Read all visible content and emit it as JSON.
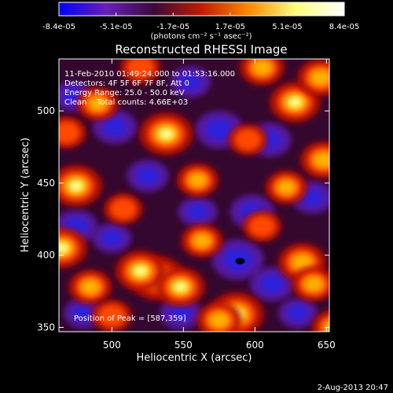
{
  "chart_data": {
    "type": "heatmap",
    "title": "Reconstructed RHESSI Image",
    "xlabel": "Heliocentric X (arcsec)",
    "ylabel": "Heliocentric Y (arcsec)",
    "xlim": [
      463,
      652
    ],
    "ylim": [
      347,
      536
    ],
    "x_ticks": [
      500,
      550,
      600,
      650
    ],
    "y_ticks": [
      350,
      400,
      450,
      500
    ],
    "x_tick_labels": [
      "500",
      "550",
      "600",
      "650"
    ],
    "y_tick_labels": [
      "350",
      "400",
      "450",
      "500"
    ],
    "colorbar": {
      "min": -8.4e-05,
      "max": 8.4e-05,
      "tick_labels": [
        "-8.4e-05",
        "-5.1e-05",
        "-1.7e-05",
        "1.7e-05",
        "5.1e-05",
        "8.4e-05"
      ],
      "unit_label": "(photons cm⁻² s⁻¹ asec⁻²)",
      "colors": [
        "#0000ff",
        "#6a1fb8",
        "#3a0a3a",
        "#c21a00",
        "#ff8a00",
        "#ffff80",
        "#ffffff"
      ]
    },
    "annotations": [
      "11-Feb-2010 01:49:24.000 to 01:53:16.000",
      "Detectors: 4F 5F 6F 7F 8F, Att 0",
      "Energy Range: 25.0 - 50.0 keV",
      "Clean    Total counts: 4.66E+03"
    ],
    "peak_label": "Position of Peak = [587,359]",
    "peak": [
      587,
      359
    ],
    "hot_sources": [
      {
        "x": 532,
        "y": 384,
        "v": 1.0
      },
      {
        "x": 520,
        "y": 389,
        "v": 0.85
      },
      {
        "x": 548,
        "y": 378,
        "v": 0.8
      },
      {
        "x": 587,
        "y": 359,
        "v": 1.0
      },
      {
        "x": 575,
        "y": 355,
        "v": 0.65
      },
      {
        "x": 538,
        "y": 484,
        "v": 0.95
      },
      {
        "x": 475,
        "y": 448,
        "v": 0.9
      },
      {
        "x": 465,
        "y": 405,
        "v": 0.85
      },
      {
        "x": 628,
        "y": 506,
        "v": 0.85
      },
      {
        "x": 646,
        "y": 523,
        "v": 0.7
      },
      {
        "x": 648,
        "y": 466,
        "v": 0.7
      },
      {
        "x": 633,
        "y": 395,
        "v": 0.75
      },
      {
        "x": 641,
        "y": 380,
        "v": 0.6
      },
      {
        "x": 605,
        "y": 530,
        "v": 0.65
      },
      {
        "x": 490,
        "y": 505,
        "v": 0.55
      },
      {
        "x": 485,
        "y": 378,
        "v": 0.6
      },
      {
        "x": 560,
        "y": 452,
        "v": 0.55
      },
      {
        "x": 622,
        "y": 447,
        "v": 0.55
      },
      {
        "x": 468,
        "y": 485,
        "v": 0.5
      },
      {
        "x": 508,
        "y": 432,
        "v": 0.45
      },
      {
        "x": 605,
        "y": 420,
        "v": 0.45
      },
      {
        "x": 500,
        "y": 358,
        "v": 0.5
      },
      {
        "x": 563,
        "y": 410,
        "v": 0.55
      },
      {
        "x": 595,
        "y": 480,
        "v": 0.45
      },
      {
        "x": 655,
        "y": 350,
        "v": 0.6
      },
      {
        "x": 520,
        "y": 530,
        "v": 0.5
      }
    ],
    "cold_sources": [
      {
        "x": 588,
        "y": 397,
        "v": 1.0
      },
      {
        "x": 575,
        "y": 487,
        "v": 0.85
      },
      {
        "x": 610,
        "y": 480,
        "v": 0.7
      },
      {
        "x": 598,
        "y": 430,
        "v": 0.7
      },
      {
        "x": 612,
        "y": 380,
        "v": 0.7
      },
      {
        "x": 502,
        "y": 489,
        "v": 0.7
      },
      {
        "x": 525,
        "y": 455,
        "v": 0.6
      },
      {
        "x": 475,
        "y": 420,
        "v": 0.65
      },
      {
        "x": 548,
        "y": 360,
        "v": 0.6
      },
      {
        "x": 640,
        "y": 440,
        "v": 0.6
      },
      {
        "x": 555,
        "y": 520,
        "v": 0.55
      },
      {
        "x": 500,
        "y": 412,
        "v": 0.5
      },
      {
        "x": 473,
        "y": 510,
        "v": 0.5
      },
      {
        "x": 630,
        "y": 360,
        "v": 0.5
      },
      {
        "x": 560,
        "y": 430,
        "v": 0.5
      },
      {
        "x": 480,
        "y": 360,
        "v": 0.5
      }
    ]
  },
  "timestamp": "2-Aug-2013 20:47"
}
